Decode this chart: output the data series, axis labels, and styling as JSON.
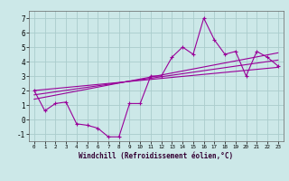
{
  "x": [
    0,
    1,
    2,
    3,
    4,
    5,
    6,
    7,
    8,
    9,
    10,
    11,
    12,
    13,
    14,
    15,
    16,
    17,
    18,
    19,
    20,
    21,
    22,
    23
  ],
  "y_main": [
    2.0,
    0.6,
    1.1,
    1.2,
    -0.3,
    -0.4,
    -0.6,
    -1.2,
    -1.2,
    1.1,
    1.1,
    3.0,
    3.0,
    4.3,
    5.0,
    4.5,
    7.0,
    5.5,
    4.5,
    4.7,
    3.0,
    4.7,
    4.3,
    3.7
  ],
  "line_color": "#990099",
  "bg_color": "#cce8e8",
  "grid_color": "#aacccc",
  "xlabel": "Windchill (Refroidissement éolien,°C)",
  "ylim": [
    -1.5,
    7.5
  ],
  "xlim": [
    -0.5,
    23.5
  ],
  "yticks": [
    -1,
    0,
    1,
    2,
    3,
    4,
    5,
    6,
    7
  ],
  "xticks": [
    0,
    1,
    2,
    3,
    4,
    5,
    6,
    7,
    8,
    9,
    10,
    11,
    12,
    13,
    14,
    15,
    16,
    17,
    18,
    19,
    20,
    21,
    22,
    23
  ],
  "regression_lines": [
    {
      "x0": 0,
      "y0": 2.0,
      "x1": 23,
      "y1": 3.6
    },
    {
      "x0": 0,
      "y0": 1.7,
      "x1": 23,
      "y1": 4.1
    },
    {
      "x0": 0,
      "y0": 1.4,
      "x1": 23,
      "y1": 4.6
    }
  ]
}
